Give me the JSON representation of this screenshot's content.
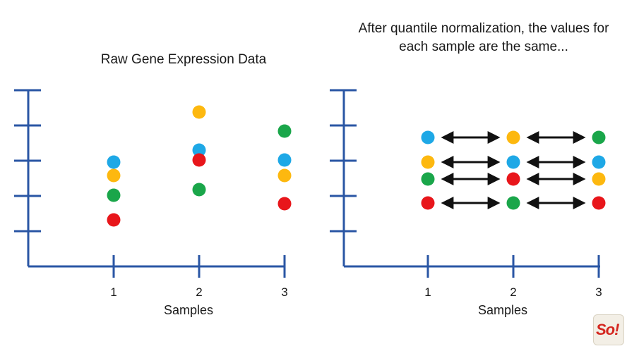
{
  "chart_data": [
    {
      "type": "scatter",
      "title": "Raw Gene Expression Data",
      "xlabel": "Samples",
      "ylabel": "",
      "x_ticks": [
        "1",
        "2",
        "3"
      ],
      "colors": {
        "blue": "#1ea8e6",
        "orange": "#fdb80f",
        "green": "#1aa64a",
        "red": "#e8161b"
      },
      "points": [
        {
          "x": 1,
          "y": 2.96,
          "color": "blue"
        },
        {
          "x": 1,
          "y": 2.58,
          "color": "orange"
        },
        {
          "x": 1,
          "y": 2.02,
          "color": "green"
        },
        {
          "x": 1,
          "y": 1.32,
          "color": "red"
        },
        {
          "x": 2,
          "y": 4.38,
          "color": "orange"
        },
        {
          "x": 2,
          "y": 3.3,
          "color": "blue"
        },
        {
          "x": 2,
          "y": 3.02,
          "color": "red"
        },
        {
          "x": 2,
          "y": 2.18,
          "color": "green"
        },
        {
          "x": 3,
          "y": 3.84,
          "color": "green"
        },
        {
          "x": 3,
          "y": 3.02,
          "color": "blue"
        },
        {
          "x": 3,
          "y": 2.58,
          "color": "orange"
        },
        {
          "x": 3,
          "y": 1.78,
          "color": "red"
        }
      ]
    },
    {
      "type": "scatter",
      "title": "After quantile normalization, the values for each sample are the same...",
      "xlabel": "Samples",
      "ylabel": "",
      "x_ticks": [
        "1",
        "2",
        "3"
      ],
      "colors": {
        "blue": "#1ea8e6",
        "orange": "#fdb80f",
        "green": "#1aa64a",
        "red": "#e8161b"
      },
      "arrows_between_samples": true,
      "points": [
        {
          "x": 1,
          "y": 3.66,
          "color": "blue"
        },
        {
          "x": 1,
          "y": 2.96,
          "color": "orange"
        },
        {
          "x": 1,
          "y": 2.48,
          "color": "green"
        },
        {
          "x": 1,
          "y": 1.8,
          "color": "red"
        },
        {
          "x": 2,
          "y": 3.66,
          "color": "orange"
        },
        {
          "x": 2,
          "y": 2.96,
          "color": "blue"
        },
        {
          "x": 2,
          "y": 2.48,
          "color": "red"
        },
        {
          "x": 2,
          "y": 1.8,
          "color": "green"
        },
        {
          "x": 3,
          "y": 3.66,
          "color": "green"
        },
        {
          "x": 3,
          "y": 2.96,
          "color": "blue"
        },
        {
          "x": 3,
          "y": 2.48,
          "color": "orange"
        },
        {
          "x": 3,
          "y": 1.8,
          "color": "red"
        }
      ]
    }
  ],
  "logo": {
    "text": "So!"
  },
  "axis_color": "#2a56a4"
}
